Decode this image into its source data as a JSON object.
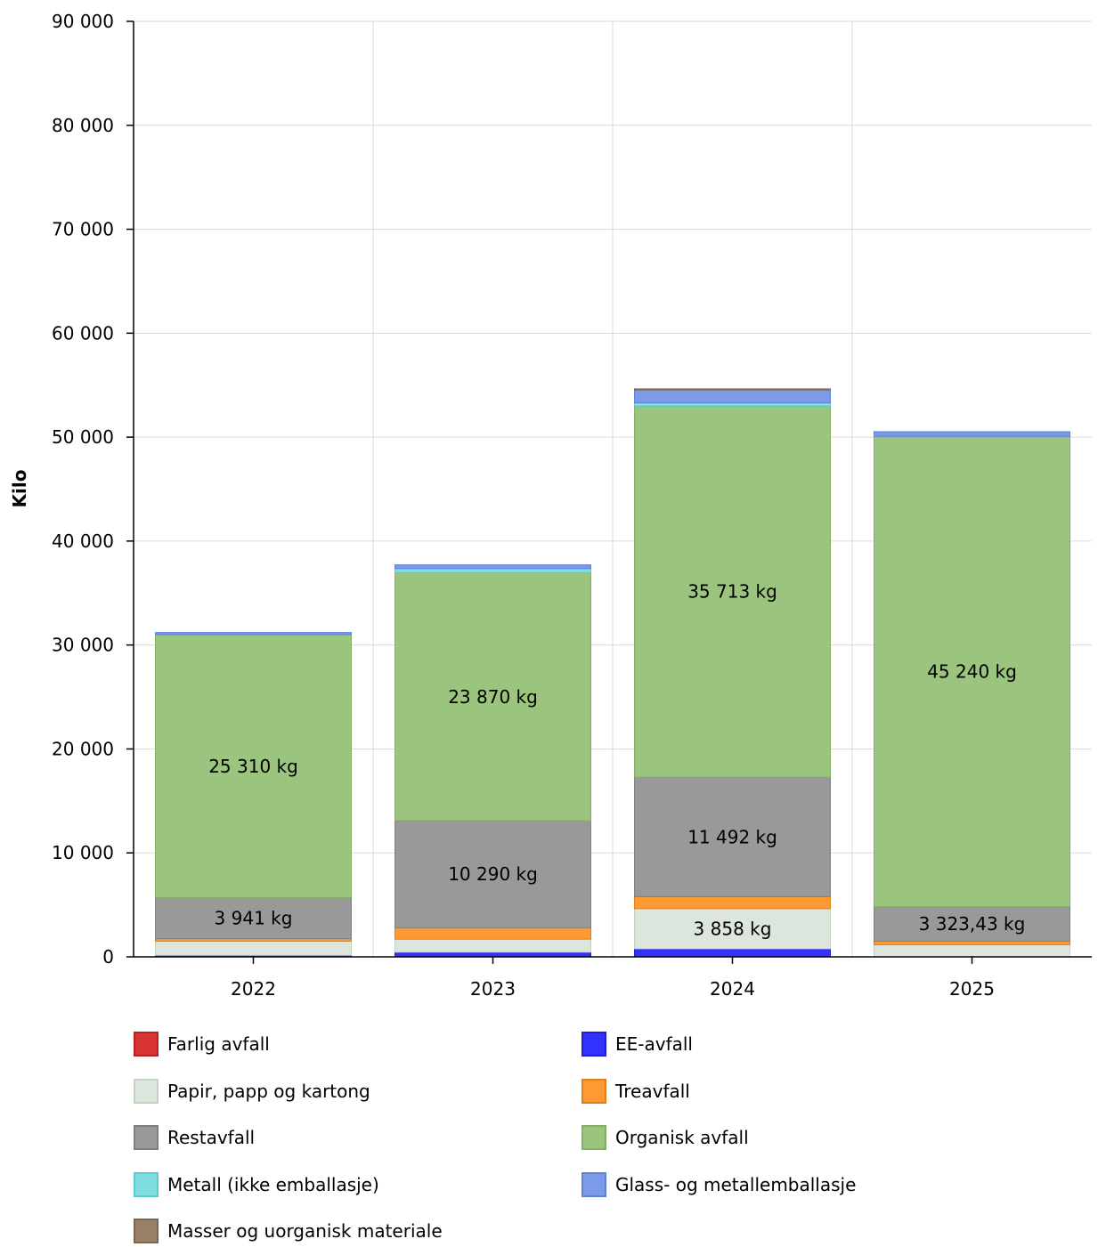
{
  "chart_data": {
    "type": "bar",
    "stacked": true,
    "ylabel": "Kilo",
    "ylim": [
      0,
      90000
    ],
    "yticks": [
      0,
      10000,
      20000,
      30000,
      40000,
      50000,
      60000,
      70000,
      80000,
      90000
    ],
    "ytick_labels": [
      "0",
      "10 000",
      "20 000",
      "30 000",
      "40 000",
      "50 000",
      "60 000",
      "70 000",
      "80 000",
      "90 000"
    ],
    "categories": [
      "2022",
      "2023",
      "2024",
      "2025"
    ],
    "grid": true,
    "legend_position": "bottom",
    "series": [
      {
        "name": "Farlig avfall",
        "color": "#d93434",
        "border": "#b82222",
        "values": [
          0,
          0,
          0,
          0
        ]
      },
      {
        "name": "EE-avfall",
        "color": "#3232ff",
        "border": "#1e1ed6",
        "values": [
          150,
          450,
          780,
          0
        ]
      },
      {
        "name": "Papir, papp og kartong",
        "color": "#dce6dc",
        "border": "#c4d2c4",
        "values": [
          1350,
          1250,
          3858,
          1160
        ]
      },
      {
        "name": "Treavfall",
        "color": "#ff9933",
        "border": "#e07f1a",
        "values": [
          250,
          1100,
          1150,
          350
        ]
      },
      {
        "name": "Restavfall",
        "color": "#999999",
        "border": "#808080",
        "values": [
          3941,
          10290,
          11492,
          3323.43
        ]
      },
      {
        "name": "Organisk avfall",
        "color": "#9bc47f",
        "border": "#84b066",
        "values": [
          25310,
          23870,
          35713,
          45240
        ]
      },
      {
        "name": "Metall (ikke emballasje)",
        "color": "#80dde0",
        "border": "#5cc9cc",
        "values": [
          0,
          400,
          300,
          0
        ]
      },
      {
        "name": "Glass- og metallemballasje",
        "color": "#7b9ae8",
        "border": "#5f80d6",
        "values": [
          200,
          350,
          1250,
          450
        ]
      },
      {
        "name": "Masser og uorganisk materiale",
        "color": "#9a7f68",
        "border": "#7f6651",
        "values": [
          0,
          0,
          100,
          0
        ]
      }
    ],
    "data_labels": [
      {
        "category": "2022",
        "series": "Restavfall",
        "text": "3 941 kg"
      },
      {
        "category": "2022",
        "series": "Organisk avfall",
        "text": "25 310 kg"
      },
      {
        "category": "2023",
        "series": "Restavfall",
        "text": "10 290 kg"
      },
      {
        "category": "2023",
        "series": "Organisk avfall",
        "text": "23 870 kg"
      },
      {
        "category": "2024",
        "series": "Papir, papp og kartong",
        "text": "3 858 kg"
      },
      {
        "category": "2024",
        "series": "Restavfall",
        "text": "11 492 kg"
      },
      {
        "category": "2024",
        "series": "Organisk avfall",
        "text": "35 713 kg"
      },
      {
        "category": "2025",
        "series": "Restavfall",
        "text": "3 323,43 kg"
      },
      {
        "category": "2025",
        "series": "Organisk avfall",
        "text": "45 240 kg"
      }
    ]
  }
}
